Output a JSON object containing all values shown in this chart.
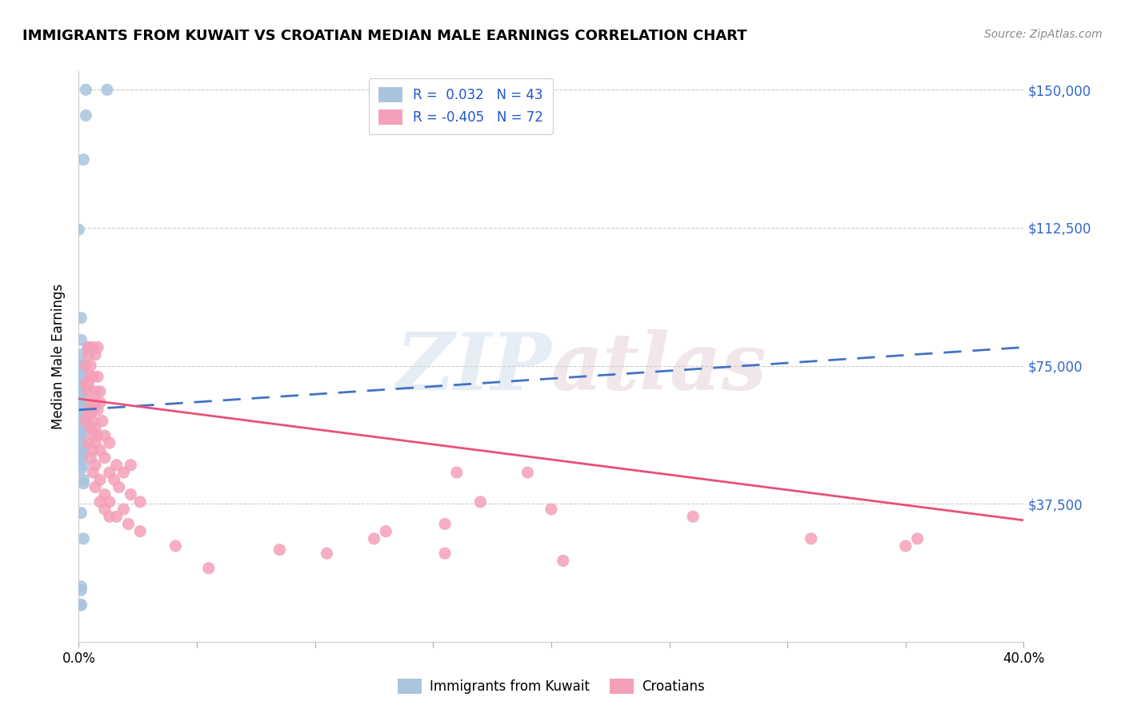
{
  "title": "IMMIGRANTS FROM KUWAIT VS CROATIAN MEDIAN MALE EARNINGS CORRELATION CHART",
  "source": "Source: ZipAtlas.com",
  "ylabel": "Median Male Earnings",
  "xlim": [
    0.0,
    0.4
  ],
  "ylim": [
    0,
    155000
  ],
  "yticks": [
    0,
    37500,
    75000,
    112500,
    150000
  ],
  "ytick_labels": [
    "",
    "$37,500",
    "$75,000",
    "$112,500",
    "$150,000"
  ],
  "xticks": [
    0.0,
    0.05,
    0.1,
    0.15,
    0.2,
    0.25,
    0.3,
    0.35,
    0.4
  ],
  "xtick_labels": [
    "0.0%",
    "",
    "",
    "",
    "",
    "",
    "",
    "",
    "40.0%"
  ],
  "kuwait_color": "#aac4de",
  "croatian_color": "#f4a0b8",
  "kuwait_line_color": "#4472c4",
  "croatian_line_color": "#e8507a",
  "kuwait_trendline": [
    [
      0.0,
      63000
    ],
    [
      0.4,
      80000
    ]
  ],
  "croatian_trendline": [
    [
      0.0,
      66000
    ],
    [
      0.4,
      33000
    ]
  ],
  "kuwait_scatter": [
    [
      0.003,
      150000
    ],
    [
      0.012,
      150000
    ],
    [
      0.003,
      143000
    ],
    [
      0.002,
      131000
    ],
    [
      0.0,
      112000
    ],
    [
      0.001,
      88000
    ],
    [
      0.001,
      82000
    ],
    [
      0.004,
      80000
    ],
    [
      0.001,
      78000
    ],
    [
      0.001,
      75000
    ],
    [
      0.002,
      75000
    ],
    [
      0.001,
      73000
    ],
    [
      0.002,
      72000
    ],
    [
      0.001,
      70000
    ],
    [
      0.001,
      69000
    ],
    [
      0.002,
      68000
    ],
    [
      0.001,
      67000
    ],
    [
      0.001,
      66000
    ],
    [
      0.001,
      65000
    ],
    [
      0.002,
      64000
    ],
    [
      0.001,
      63000
    ],
    [
      0.002,
      62000
    ],
    [
      0.002,
      61000
    ],
    [
      0.001,
      60000
    ],
    [
      0.001,
      59000
    ],
    [
      0.002,
      58000
    ],
    [
      0.001,
      57000
    ],
    [
      0.001,
      56000
    ],
    [
      0.001,
      55000
    ],
    [
      0.001,
      54000
    ],
    [
      0.002,
      53000
    ],
    [
      0.002,
      52000
    ],
    [
      0.001,
      51000
    ],
    [
      0.001,
      50000
    ],
    [
      0.002,
      48000
    ],
    [
      0.001,
      47000
    ],
    [
      0.002,
      44000
    ],
    [
      0.002,
      43000
    ],
    [
      0.001,
      35000
    ],
    [
      0.002,
      28000
    ],
    [
      0.001,
      15000
    ],
    [
      0.001,
      14000
    ],
    [
      0.001,
      10000
    ],
    [
      0.001,
      10000
    ]
  ],
  "croatian_scatter": [
    [
      0.004,
      80000
    ],
    [
      0.006,
      80000
    ],
    [
      0.008,
      80000
    ],
    [
      0.004,
      78000
    ],
    [
      0.007,
      78000
    ],
    [
      0.003,
      75000
    ],
    [
      0.005,
      75000
    ],
    [
      0.005,
      72000
    ],
    [
      0.008,
      72000
    ],
    [
      0.006,
      72000
    ],
    [
      0.003,
      70000
    ],
    [
      0.004,
      70000
    ],
    [
      0.004,
      68000
    ],
    [
      0.007,
      68000
    ],
    [
      0.009,
      68000
    ],
    [
      0.005,
      65000
    ],
    [
      0.007,
      65000
    ],
    [
      0.009,
      65000
    ],
    [
      0.006,
      63000
    ],
    [
      0.008,
      63000
    ],
    [
      0.004,
      62000
    ],
    [
      0.005,
      62000
    ],
    [
      0.003,
      60000
    ],
    [
      0.006,
      60000
    ],
    [
      0.01,
      60000
    ],
    [
      0.005,
      58000
    ],
    [
      0.007,
      58000
    ],
    [
      0.006,
      56000
    ],
    [
      0.008,
      56000
    ],
    [
      0.011,
      56000
    ],
    [
      0.004,
      54000
    ],
    [
      0.007,
      54000
    ],
    [
      0.013,
      54000
    ],
    [
      0.006,
      52000
    ],
    [
      0.009,
      52000
    ],
    [
      0.005,
      50000
    ],
    [
      0.011,
      50000
    ],
    [
      0.007,
      48000
    ],
    [
      0.016,
      48000
    ],
    [
      0.022,
      48000
    ],
    [
      0.006,
      46000
    ],
    [
      0.013,
      46000
    ],
    [
      0.019,
      46000
    ],
    [
      0.009,
      44000
    ],
    [
      0.015,
      44000
    ],
    [
      0.007,
      42000
    ],
    [
      0.017,
      42000
    ],
    [
      0.011,
      40000
    ],
    [
      0.022,
      40000
    ],
    [
      0.009,
      38000
    ],
    [
      0.013,
      38000
    ],
    [
      0.026,
      38000
    ],
    [
      0.011,
      36000
    ],
    [
      0.019,
      36000
    ],
    [
      0.013,
      34000
    ],
    [
      0.016,
      34000
    ],
    [
      0.021,
      32000
    ],
    [
      0.026,
      30000
    ],
    [
      0.16,
      46000
    ],
    [
      0.19,
      46000
    ],
    [
      0.17,
      38000
    ],
    [
      0.26,
      34000
    ],
    [
      0.155,
      32000
    ],
    [
      0.13,
      30000
    ],
    [
      0.125,
      28000
    ],
    [
      0.041,
      26000
    ],
    [
      0.085,
      25000
    ],
    [
      0.355,
      28000
    ],
    [
      0.105,
      24000
    ],
    [
      0.155,
      24000
    ],
    [
      0.205,
      22000
    ],
    [
      0.055,
      20000
    ],
    [
      0.2,
      36000
    ],
    [
      0.31,
      28000
    ],
    [
      0.35,
      26000
    ]
  ]
}
